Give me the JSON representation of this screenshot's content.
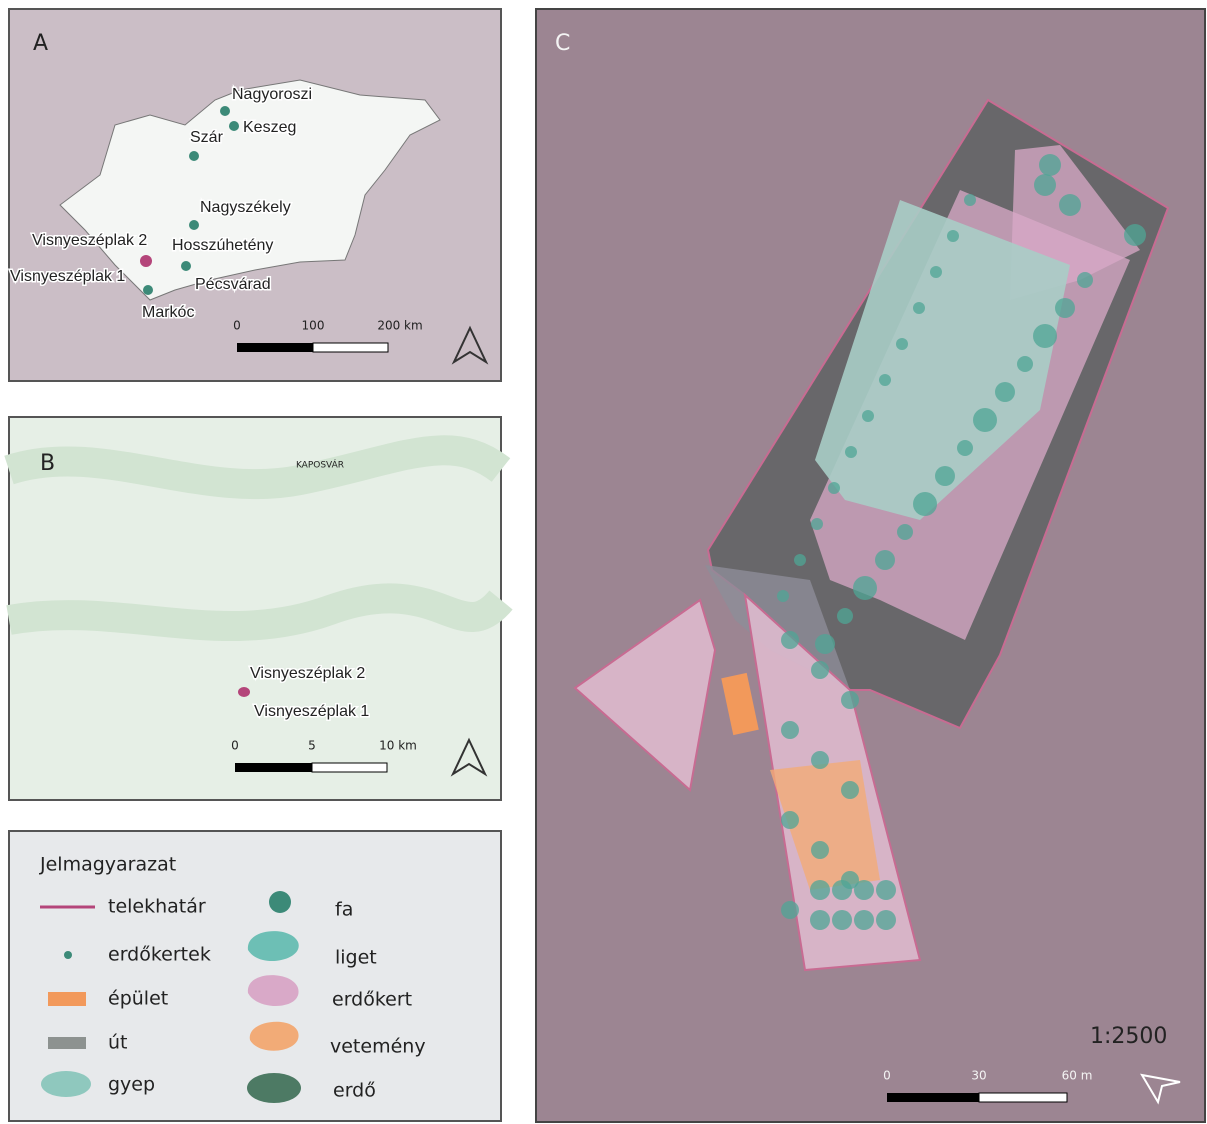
{
  "panels": [
    {
      "label": "A",
      "places": [
        "Nagyoroszi",
        "Keszeg",
        "Szár",
        "Nagyszékely",
        "Hosszúhetény",
        "Visnyeszéplak 2",
        "Visnyeszéplak 1",
        "Pécsvárad",
        "Markóc"
      ],
      "scale_bar": [
        "0",
        "100",
        "200 km"
      ]
    },
    {
      "label": "B",
      "basemap_label": "KAPOSVÁR",
      "places": [
        "Visnyeszéplak 2",
        "Visnyeszéplak 1"
      ],
      "scale_bar": [
        "0",
        "5",
        "10 km"
      ]
    },
    {
      "label": "C",
      "scale": "1:2500",
      "scale_bar": [
        "0",
        "30",
        "60 m"
      ]
    }
  ],
  "legend": {
    "title": "Jelmagyarazat",
    "items": [
      "telekhatár",
      "erdőkertek",
      "épület",
      "út",
      "gyep",
      "fa",
      "liget",
      "erdőkert",
      "vetemény",
      "erdő"
    ]
  }
}
